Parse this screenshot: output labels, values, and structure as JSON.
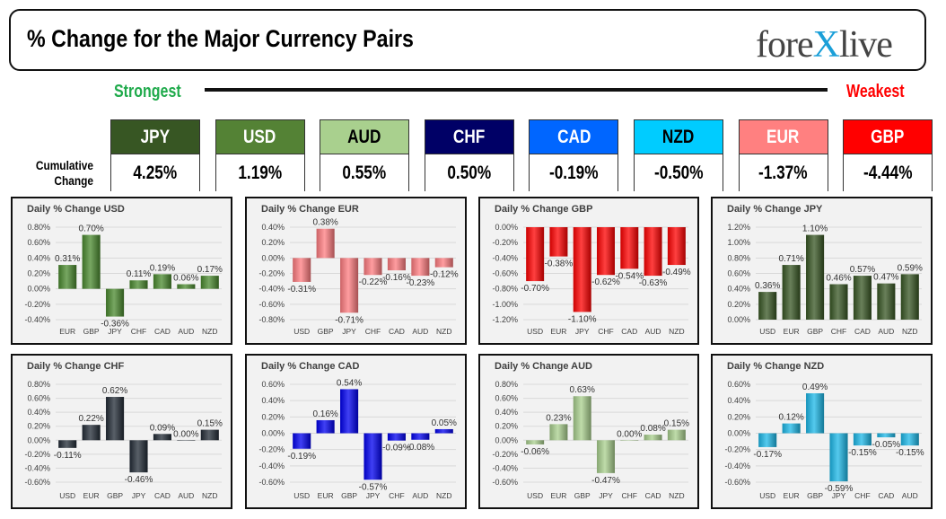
{
  "header": {
    "title": "% Change for the Major Currency Pairs",
    "logo": "forexlive"
  },
  "ranking": {
    "strongest_label": "Strongest",
    "weakest_label": "Weakest",
    "cumulative_label_1": "Cumulative",
    "cumulative_label_2": "Change",
    "currencies": [
      {
        "name": "JPY",
        "value": "4.25%",
        "color": "#375623",
        "text_color": "#ffffff"
      },
      {
        "name": "USD",
        "value": "1.19%",
        "color": "#548235",
        "text_color": "#ffffff"
      },
      {
        "name": "AUD",
        "value": "0.55%",
        "color": "#a9d08e",
        "text_color": "#000000"
      },
      {
        "name": "CHF",
        "value": "0.50%",
        "color": "#000066",
        "text_color": "#ffffff"
      },
      {
        "name": "CAD",
        "value": "-0.19%",
        "color": "#0066ff",
        "text_color": "#ffffff"
      },
      {
        "name": "NZD",
        "value": "-0.50%",
        "color": "#00ccff",
        "text_color": "#000000"
      },
      {
        "name": "EUR",
        "value": "-1.37%",
        "color": "#ff8080",
        "text_color": "#ffffff"
      },
      {
        "name": "GBP",
        "value": "-4.44%",
        "color": "#ff0000",
        "text_color": "#ffffff"
      }
    ]
  },
  "chart_data": [
    {
      "type": "bar",
      "title": "Daily % Change USD",
      "color": "#4a8a2e",
      "categories": [
        "EUR",
        "GBP",
        "JPY",
        "CHF",
        "CAD",
        "AUD",
        "NZD"
      ],
      "values": [
        0.31,
        0.7,
        -0.36,
        0.11,
        0.19,
        0.06,
        0.17
      ],
      "ylim": [
        -0.4,
        0.8
      ],
      "ytick_step": 0.2,
      "grid": true
    },
    {
      "type": "bar",
      "title": "Daily % Change EUR",
      "color": "#ff7c80",
      "categories": [
        "USD",
        "GBP",
        "JPY",
        "CHF",
        "CAD",
        "AUD",
        "NZD"
      ],
      "values": [
        -0.31,
        0.38,
        -0.71,
        -0.22,
        -0.16,
        -0.23,
        -0.12
      ],
      "ylim": [
        -0.8,
        0.4
      ],
      "ytick_step": 0.2,
      "grid": true
    },
    {
      "type": "bar",
      "title": "Daily % Change GBP",
      "color": "#ff0000",
      "categories": [
        "USD",
        "EUR",
        "JPY",
        "CHF",
        "CAD",
        "AUD",
        "NZD"
      ],
      "values": [
        -0.7,
        -0.38,
        -1.1,
        -0.62,
        -0.54,
        -0.63,
        -0.49
      ],
      "ylim": [
        -1.2,
        0
      ],
      "ytick_step": 0.2,
      "grid": true
    },
    {
      "type": "bar",
      "title": "Daily % Change JPY",
      "color": "#375623",
      "categories": [
        "USD",
        "EUR",
        "GBP",
        "CHF",
        "CAD",
        "AUD",
        "NZD"
      ],
      "values": [
        0.36,
        0.71,
        1.1,
        0.46,
        0.57,
        0.47,
        0.59
      ],
      "ylim": [
        0,
        1.2
      ],
      "ytick_step": 0.2,
      "grid": true
    },
    {
      "type": "bar",
      "title": "Daily % Change CHF",
      "color": "#222b36",
      "categories": [
        "USD",
        "EUR",
        "GBP",
        "JPY",
        "CAD",
        "AUD",
        "NZD"
      ],
      "values": [
        -0.11,
        0.22,
        0.62,
        -0.46,
        0.09,
        0.0,
        0.15
      ],
      "ylim": [
        -0.6,
        0.8
      ],
      "ytick_step": 0.2,
      "grid": true
    },
    {
      "type": "bar",
      "title": "Daily % Change CAD",
      "color": "#0000f0",
      "categories": [
        "USD",
        "EUR",
        "GBP",
        "JPY",
        "CHF",
        "AUD",
        "NZD"
      ],
      "values": [
        -0.19,
        0.16,
        0.54,
        -0.57,
        -0.09,
        -0.08,
        0.05
      ],
      "ylim": [
        -0.6,
        0.6
      ],
      "ytick_step": 0.2,
      "grid": true
    },
    {
      "type": "bar",
      "title": "Daily % Change AUD",
      "color": "#a9d08e",
      "categories": [
        "USD",
        "EUR",
        "GBP",
        "JPY",
        "CHF",
        "CAD",
        "NZD"
      ],
      "values": [
        -0.06,
        0.23,
        0.63,
        -0.47,
        0.0,
        0.08,
        0.15
      ],
      "ylim": [
        -0.6,
        0.8
      ],
      "ytick_step": 0.2,
      "grid": true
    },
    {
      "type": "bar",
      "title": "Daily % Change NZD",
      "color": "#1cb8e8",
      "categories": [
        "USD",
        "EUR",
        "GBP",
        "JPY",
        "CHF",
        "CAD",
        "AUD"
      ],
      "values": [
        -0.17,
        0.12,
        0.49,
        -0.59,
        -0.15,
        -0.05,
        -0.15
      ],
      "ylim": [
        -0.6,
        0.6
      ],
      "ytick_step": 0.2,
      "grid": true
    }
  ]
}
